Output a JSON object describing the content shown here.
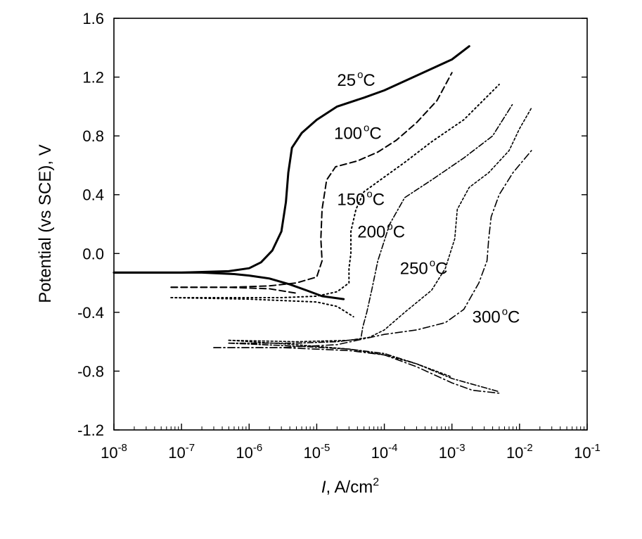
{
  "chart_data": {
    "type": "line",
    "x_scale": "log",
    "xlim": [
      1e-08,
      0.1
    ],
    "ylim": [
      -1.2,
      1.6
    ],
    "xlabel": {
      "italic": "I",
      "rest": ", A/cm",
      "sup": "2"
    },
    "ylabel": "Potential (vs SCE), V",
    "grid": false,
    "x_ticks": [
      {
        "value": 1e-08,
        "base": "10",
        "exp": "-8"
      },
      {
        "value": 1e-07,
        "base": "10",
        "exp": "-7"
      },
      {
        "value": 1e-06,
        "base": "10",
        "exp": "-6"
      },
      {
        "value": 1e-05,
        "base": "10",
        "exp": "-5"
      },
      {
        "value": 0.0001,
        "base": "10",
        "exp": "-4"
      },
      {
        "value": 0.001,
        "base": "10",
        "exp": "-3"
      },
      {
        "value": 0.01,
        "base": "10",
        "exp": "-2"
      },
      {
        "value": 0.1,
        "base": "10",
        "exp": "-1"
      }
    ],
    "y_ticks": [
      "1.6",
      "1.2",
      "0.8",
      "0.4",
      "0.0",
      "-0.4",
      "-0.8",
      "-1.2"
    ],
    "y_tick_values": [
      1.6,
      1.2,
      0.8,
      0.4,
      0.0,
      -0.4,
      -0.8,
      -1.2
    ],
    "series": [
      {
        "name": "25 °C",
        "label_num": "25",
        "label_deg": "o",
        "label_unit": "C",
        "dash": "solid",
        "width": 3,
        "label_at": [
          2e-05,
          1.14
        ],
        "anodic": [
          [
            1e-08,
            -0.13
          ],
          [
            1e-07,
            -0.13
          ],
          [
            5e-07,
            -0.12
          ],
          [
            1e-06,
            -0.1
          ],
          [
            1.5e-06,
            -0.06
          ],
          [
            2.2e-06,
            0.02
          ],
          [
            3e-06,
            0.15
          ],
          [
            3.5e-06,
            0.35
          ],
          [
            3.8e-06,
            0.55
          ],
          [
            4.3e-06,
            0.72
          ],
          [
            6e-06,
            0.82
          ],
          [
            1e-05,
            0.91
          ],
          [
            2e-05,
            1.0
          ],
          [
            5e-05,
            1.06
          ],
          [
            0.0001,
            1.11
          ],
          [
            0.0003,
            1.21
          ],
          [
            0.001,
            1.32
          ],
          [
            0.0018,
            1.41
          ]
        ],
        "cathodic": [
          [
            1e-08,
            -0.13
          ],
          [
            2e-07,
            -0.13
          ],
          [
            6e-07,
            -0.14
          ],
          [
            1e-06,
            -0.15
          ],
          [
            2e-06,
            -0.17
          ],
          [
            4e-06,
            -0.21
          ],
          [
            7e-06,
            -0.25
          ],
          [
            1.2e-05,
            -0.29
          ],
          [
            2.5e-05,
            -0.31
          ]
        ]
      },
      {
        "name": "100°C",
        "label_num": "100",
        "label_deg": "o",
        "label_unit": "C",
        "dash": "9,5",
        "width": 2,
        "label_at": [
          1.8e-05,
          0.78
        ],
        "anodic": [
          [
            7e-08,
            -0.23
          ],
          [
            5e-07,
            -0.23
          ],
          [
            2e-06,
            -0.22
          ],
          [
            5e-06,
            -0.2
          ],
          [
            1e-05,
            -0.16
          ],
          [
            1.2e-05,
            -0.05
          ],
          [
            1.15e-05,
            0.1
          ],
          [
            1.2e-05,
            0.3
          ],
          [
            1.4e-05,
            0.5
          ],
          [
            1.9e-05,
            0.59
          ],
          [
            4e-05,
            0.63
          ],
          [
            8e-05,
            0.69
          ],
          [
            0.00015,
            0.77
          ],
          [
            0.0003,
            0.89
          ],
          [
            0.0006,
            1.04
          ],
          [
            0.001,
            1.23
          ]
        ],
        "cathodic": [
          [
            7e-08,
            -0.23
          ],
          [
            5e-07,
            -0.23
          ],
          [
            2e-06,
            -0.24
          ],
          [
            5e-06,
            -0.27
          ]
        ]
      },
      {
        "name": "150 °C",
        "label_num": "150",
        "label_deg": "o",
        "label_unit": "C",
        "dash": "2,4",
        "width": 2,
        "label_at": [
          2e-05,
          0.33
        ],
        "anodic": [
          [
            7e-08,
            -0.3
          ],
          [
            5e-07,
            -0.3
          ],
          [
            3e-06,
            -0.3
          ],
          [
            1e-05,
            -0.29
          ],
          [
            2e-05,
            -0.26
          ],
          [
            3e-05,
            -0.2
          ],
          [
            3e-05,
            -0.1
          ],
          [
            3.2e-05,
            0.0
          ],
          [
            3.2e-05,
            0.15
          ],
          [
            3.8e-05,
            0.3
          ],
          [
            5e-05,
            0.42
          ],
          [
            0.0001,
            0.52
          ],
          [
            0.0002,
            0.62
          ],
          [
            0.0005,
            0.76
          ],
          [
            0.0015,
            0.91
          ],
          [
            0.005,
            1.15
          ]
        ],
        "cathodic": [
          [
            7e-08,
            -0.3
          ],
          [
            1e-06,
            -0.31
          ],
          [
            1e-05,
            -0.33
          ],
          [
            2e-05,
            -0.36
          ],
          [
            3.5e-05,
            -0.43
          ]
        ]
      },
      {
        "name": "200 °C",
        "label_num": "200",
        "label_deg": "o",
        "label_unit": "C",
        "dash": "8,3,2,3",
        "width": 1.6,
        "label_at": [
          4e-05,
          0.11
        ],
        "anodic": [
          [
            5e-07,
            -0.61
          ],
          [
            5e-06,
            -0.61
          ],
          [
            2e-05,
            -0.6
          ],
          [
            4.5e-05,
            -0.58
          ],
          [
            4.8e-05,
            -0.5
          ],
          [
            5.5e-05,
            -0.4
          ],
          [
            6.5e-05,
            -0.25
          ],
          [
            8e-05,
            -0.05
          ],
          [
            0.00012,
            0.2
          ],
          [
            0.0002,
            0.38
          ],
          [
            0.0005,
            0.5
          ],
          [
            0.0015,
            0.65
          ],
          [
            0.004,
            0.8
          ],
          [
            0.008,
            1.02
          ]
        ],
        "cathodic": [
          [
            5e-07,
            -0.61
          ],
          [
            5e-06,
            -0.63
          ],
          [
            3e-05,
            -0.65
          ],
          [
            0.0001,
            -0.68
          ],
          [
            0.0003,
            -0.75
          ],
          [
            0.001,
            -0.85
          ],
          [
            0.005,
            -0.94
          ]
        ]
      },
      {
        "name": "250 °C",
        "label_num": "250",
        "label_deg": "o",
        "label_unit": "C",
        "dash": "3,3",
        "width": 1.6,
        "label_at": [
          0.00017,
          -0.14
        ],
        "anodic": [
          [
            5e-07,
            -0.59
          ],
          [
            5e-06,
            -0.6
          ],
          [
            3e-05,
            -0.59
          ],
          [
            6e-05,
            -0.57
          ],
          [
            0.0001,
            -0.52
          ],
          [
            0.0002,
            -0.4
          ],
          [
            0.0005,
            -0.25
          ],
          [
            0.0008,
            -0.1
          ],
          [
            0.0011,
            0.1
          ],
          [
            0.0012,
            0.3
          ],
          [
            0.0018,
            0.45
          ],
          [
            0.0035,
            0.55
          ],
          [
            0.007,
            0.7
          ],
          [
            0.01,
            0.85
          ],
          [
            0.015,
            0.99
          ]
        ],
        "cathodic": [
          [
            5e-07,
            -0.59
          ],
          [
            5e-06,
            -0.62
          ],
          [
            3e-05,
            -0.65
          ],
          [
            0.0001,
            -0.69
          ],
          [
            0.0003,
            -0.75
          ],
          [
            0.001,
            -0.84
          ]
        ]
      },
      {
        "name": "300 °C",
        "label_num": "300",
        "label_deg": "o",
        "label_unit": "C",
        "dash": "10,4,2,4",
        "width": 1.6,
        "label_at": [
          0.002,
          -0.47
        ],
        "anodic": [
          [
            3e-07,
            -0.64
          ],
          [
            3e-06,
            -0.64
          ],
          [
            2e-05,
            -0.62
          ],
          [
            5e-05,
            -0.58
          ],
          [
            0.0001,
            -0.55
          ],
          [
            0.0003,
            -0.52
          ],
          [
            0.0008,
            -0.47
          ],
          [
            0.0015,
            -0.38
          ],
          [
            0.0025,
            -0.2
          ],
          [
            0.0033,
            -0.05
          ],
          [
            0.0035,
            0.1
          ],
          [
            0.0038,
            0.25
          ],
          [
            0.005,
            0.4
          ],
          [
            0.008,
            0.55
          ],
          [
            0.015,
            0.7
          ]
        ],
        "cathodic": [
          [
            3e-07,
            -0.64
          ],
          [
            3e-06,
            -0.64
          ],
          [
            3e-05,
            -0.66
          ],
          [
            0.0001,
            -0.69
          ],
          [
            0.0003,
            -0.77
          ],
          [
            0.001,
            -0.88
          ],
          [
            0.002,
            -0.93
          ],
          [
            0.005,
            -0.95
          ]
        ]
      }
    ]
  }
}
